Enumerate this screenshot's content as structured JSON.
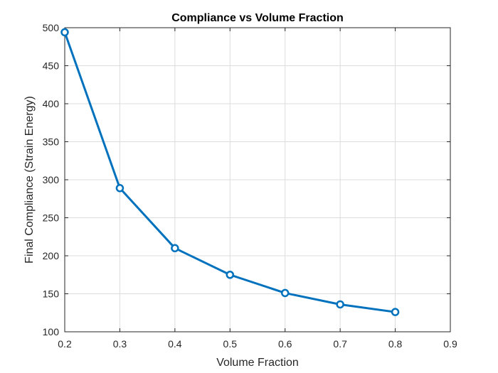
{
  "chart_data": {
    "type": "line",
    "title": "Compliance vs Volume Fraction",
    "xlabel": "Volume Fraction",
    "ylabel": "Final Compliance (Strain Energy)",
    "xlim": [
      0.2,
      0.9
    ],
    "ylim": [
      100,
      500
    ],
    "xticks": [
      "0.2",
      "0.3",
      "0.4",
      "0.5",
      "0.6",
      "0.7",
      "0.8",
      "0.9"
    ],
    "yticks": [
      "100",
      "150",
      "200",
      "250",
      "300",
      "350",
      "400",
      "450",
      "500"
    ],
    "grid": true,
    "series": [
      {
        "x": [
          0.2,
          0.3,
          0.4,
          0.5,
          0.6,
          0.7,
          0.8
        ],
        "y": [
          494,
          289,
          210,
          175,
          151,
          136,
          126
        ],
        "marker": "circle",
        "color": "#0072BD"
      }
    ]
  }
}
